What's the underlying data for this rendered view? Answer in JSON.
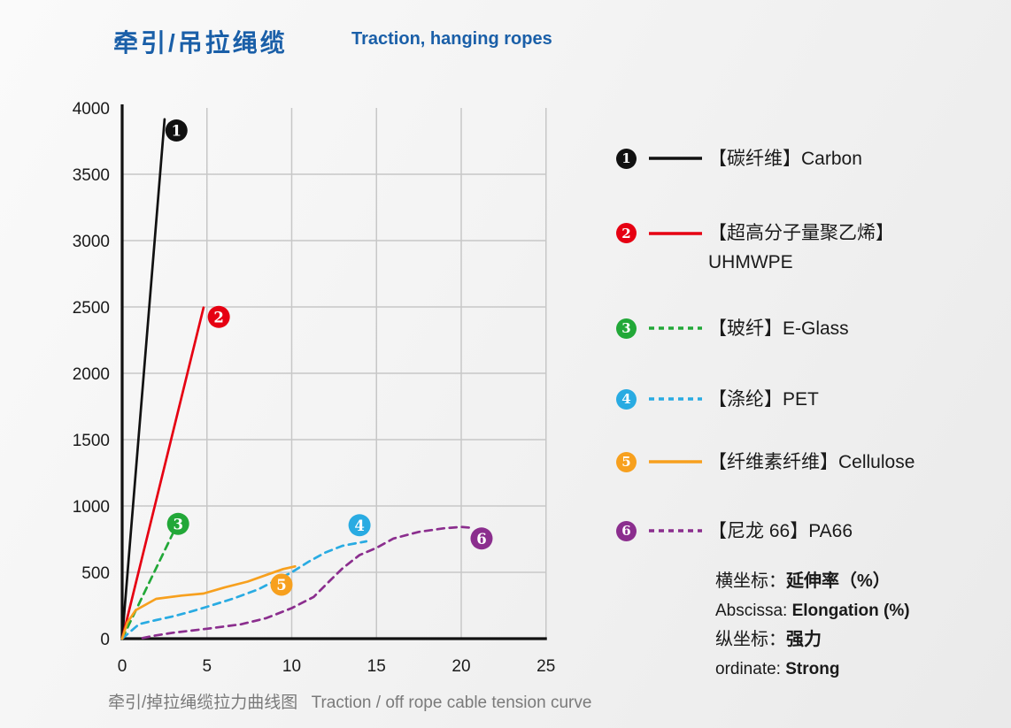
{
  "page": {
    "title_zh": "牵引/吊拉绳缆",
    "title_en": "Traction, hanging ropes",
    "caption_zh": "牵引/掉拉绳缆拉力曲线图",
    "caption_en": "Traction / off rope cable tension curve"
  },
  "colors": {
    "title_blue": "#1a5fa8",
    "caption_gray": "#7a7a7a",
    "grid": "#c7c7c7",
    "axis": "#111111",
    "text": "#1a1a1a"
  },
  "chart_data": {
    "type": "line",
    "xlabel": "延伸率 Elongation (%)",
    "ylabel": "强力 Strong",
    "xlim": [
      0,
      25
    ],
    "ylim": [
      0,
      4000
    ],
    "x_ticks": [
      0,
      5,
      10,
      15,
      20,
      25
    ],
    "y_ticks": [
      0,
      500,
      1000,
      1500,
      2000,
      2500,
      3000,
      3500,
      4000
    ],
    "grid": true,
    "legend_position": "right",
    "series": [
      {
        "num": "1",
        "label": "【碳纤维】Carbon",
        "color": "#111111",
        "dashed": false,
        "points": [
          [
            0,
            0
          ],
          [
            2.5,
            3915
          ]
        ],
        "marker": [
          3.2,
          3830
        ]
      },
      {
        "num": "2",
        "label": "【超高分子量聚乙烯】",
        "label2": "UHMWPE",
        "color": "#e60012",
        "dashed": false,
        "points": [
          [
            0,
            0
          ],
          [
            4.8,
            2495
          ]
        ],
        "marker": [
          5.7,
          2425
        ]
      },
      {
        "num": "3",
        "label": "【玻纤】E-Glass",
        "color": "#22a838",
        "dashed": true,
        "points": [
          [
            0,
            0
          ],
          [
            3.0,
            795
          ]
        ],
        "marker": [
          3.3,
          865
        ]
      },
      {
        "num": "4",
        "label": "【涤纶】PET",
        "color": "#29abe2",
        "dashed": true,
        "points": [
          [
            0,
            0
          ],
          [
            1,
            110
          ],
          [
            2,
            140
          ],
          [
            3,
            168
          ],
          [
            4,
            202
          ],
          [
            5,
            240
          ],
          [
            6.5,
            300
          ],
          [
            8,
            370
          ],
          [
            9.3,
            455
          ],
          [
            10,
            500
          ],
          [
            11,
            580
          ],
          [
            12,
            650
          ],
          [
            13,
            700
          ],
          [
            14.4,
            733
          ]
        ],
        "marker": [
          14.0,
          855
        ]
      },
      {
        "num": "5",
        "label": "【纤维素纤维】Cellulose",
        "color": "#f7a01e",
        "dashed": false,
        "points": [
          [
            0,
            0
          ],
          [
            0.3,
            120
          ],
          [
            0.8,
            215
          ],
          [
            2,
            300
          ],
          [
            3.5,
            325
          ],
          [
            4.8,
            340
          ],
          [
            6,
            385
          ],
          [
            7.4,
            430
          ],
          [
            8.6,
            485
          ],
          [
            9.5,
            525
          ],
          [
            10.2,
            545
          ]
        ],
        "marker": [
          9.4,
          407
        ]
      },
      {
        "num": "6",
        "label": "【尼龙 66】PA66",
        "color": "#8b2e8e",
        "dashed": true,
        "points": [
          [
            1.2,
            5
          ],
          [
            2,
            25
          ],
          [
            3,
            45
          ],
          [
            5,
            75
          ],
          [
            7,
            108
          ],
          [
            8.5,
            155
          ],
          [
            10,
            230
          ],
          [
            11.3,
            315
          ],
          [
            12.2,
            430
          ],
          [
            13,
            530
          ],
          [
            14,
            630
          ],
          [
            15,
            685
          ],
          [
            16,
            755
          ],
          [
            17.5,
            805
          ],
          [
            19,
            832
          ],
          [
            20,
            842
          ],
          [
            20.7,
            835
          ]
        ],
        "marker": [
          21.2,
          755
        ]
      }
    ],
    "axis_notes": [
      {
        "prefix": "横坐标：",
        "value": "延伸率（%）"
      },
      {
        "prefix": "Abscissa: ",
        "value": "Elongation (%)"
      },
      {
        "prefix": "纵坐标：",
        "value": "强力"
      },
      {
        "prefix": "ordinate: ",
        "value": "Strong"
      }
    ]
  }
}
